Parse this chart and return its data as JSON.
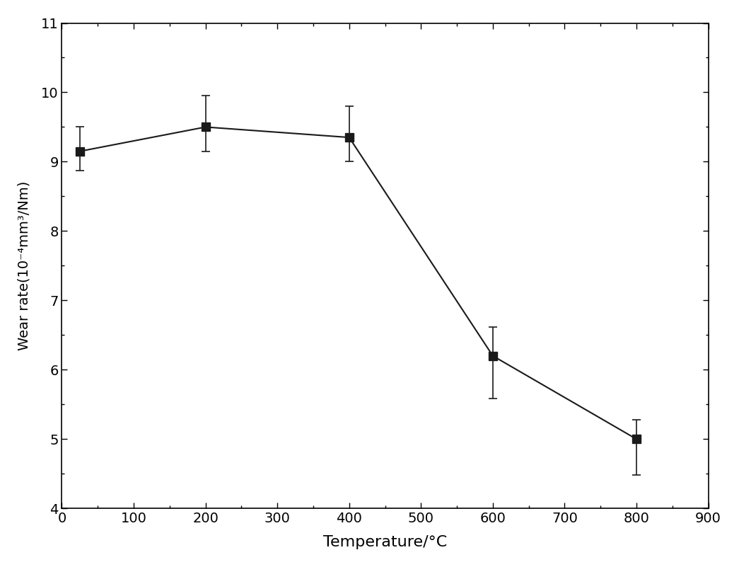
{
  "x": [
    25,
    200,
    400,
    600,
    800
  ],
  "y": [
    9.15,
    9.5,
    9.35,
    6.2,
    5.0
  ],
  "yerr_upper": [
    0.35,
    0.45,
    0.45,
    0.42,
    0.28
  ],
  "yerr_lower": [
    0.28,
    0.35,
    0.35,
    0.62,
    0.52
  ],
  "xlabel": "Temperature/°C",
  "ylabel": "Wear rate(10⁻⁴mm³/Nm)",
  "xlim": [
    0,
    900
  ],
  "ylim": [
    4,
    11
  ],
  "xticks": [
    0,
    100,
    200,
    300,
    400,
    500,
    600,
    700,
    800,
    900
  ],
  "yticks": [
    4,
    5,
    6,
    7,
    8,
    9,
    10,
    11
  ],
  "line_color": "#1a1a1a",
  "marker_color": "#1a1a1a",
  "marker": "s",
  "markersize": 8,
  "linewidth": 1.5,
  "background_color": "#ffffff",
  "xlabel_fontsize": 16,
  "ylabel_fontsize": 14,
  "tick_fontsize": 14
}
